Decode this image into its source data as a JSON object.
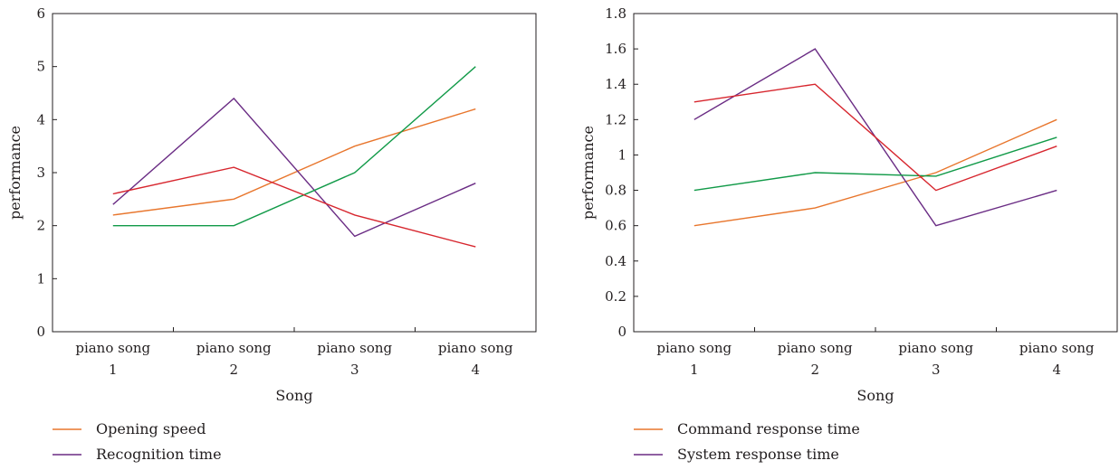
{
  "colors": {
    "orange": "#e8762d",
    "purple": "#6a2c84",
    "green": "#119a48",
    "red": "#d7262e",
    "axis": "#231f20"
  },
  "chart_data": [
    {
      "type": "line",
      "title": "",
      "xlabel": "Song",
      "ylabel": "performance",
      "categories": [
        [
          "piano song",
          "1"
        ],
        [
          "piano song",
          "2"
        ],
        [
          "piano song",
          "3"
        ],
        [
          "piano song",
          "4"
        ]
      ],
      "ylim": [
        0,
        6
      ],
      "yticks": [
        "0",
        "1",
        "2",
        "3",
        "4",
        "5",
        "6"
      ],
      "grid": false,
      "legend_placement": "bottom-left",
      "series": [
        {
          "name": "Opening speed",
          "color": "orange",
          "values": [
            2.2,
            2.5,
            3.5,
            4.2
          ]
        },
        {
          "name": "Recognition time",
          "color": "purple",
          "values": [
            2.4,
            4.4,
            1.8,
            2.8
          ]
        },
        {
          "name": "",
          "color": "green",
          "values": [
            2.0,
            2.0,
            3.0,
            5.0
          ]
        },
        {
          "name": "",
          "color": "red",
          "values": [
            2.6,
            3.1,
            2.2,
            1.6
          ]
        }
      ]
    },
    {
      "type": "line",
      "title": "",
      "xlabel": "Song",
      "ylabel": "performance",
      "categories": [
        [
          "piano song",
          "1"
        ],
        [
          "piano song",
          "2"
        ],
        [
          "piano song",
          "3"
        ],
        [
          "piano song",
          "4"
        ]
      ],
      "ylim": [
        0,
        1.8
      ],
      "yticks": [
        "0",
        "0.2",
        "0.4",
        "0.6",
        "0.8",
        "1",
        "1.2",
        "1.4",
        "1.6",
        "1.8"
      ],
      "grid": false,
      "legend_placement": "bottom-left",
      "series": [
        {
          "name": "Command response time",
          "color": "orange",
          "values": [
            0.6,
            0.7,
            0.9,
            1.2
          ]
        },
        {
          "name": "System response time",
          "color": "purple",
          "values": [
            1.2,
            1.6,
            0.6,
            0.8
          ]
        },
        {
          "name": "",
          "color": "green",
          "values": [
            0.8,
            0.9,
            0.88,
            1.1
          ]
        },
        {
          "name": "",
          "color": "red",
          "values": [
            1.3,
            1.4,
            0.8,
            1.05
          ]
        }
      ]
    }
  ]
}
